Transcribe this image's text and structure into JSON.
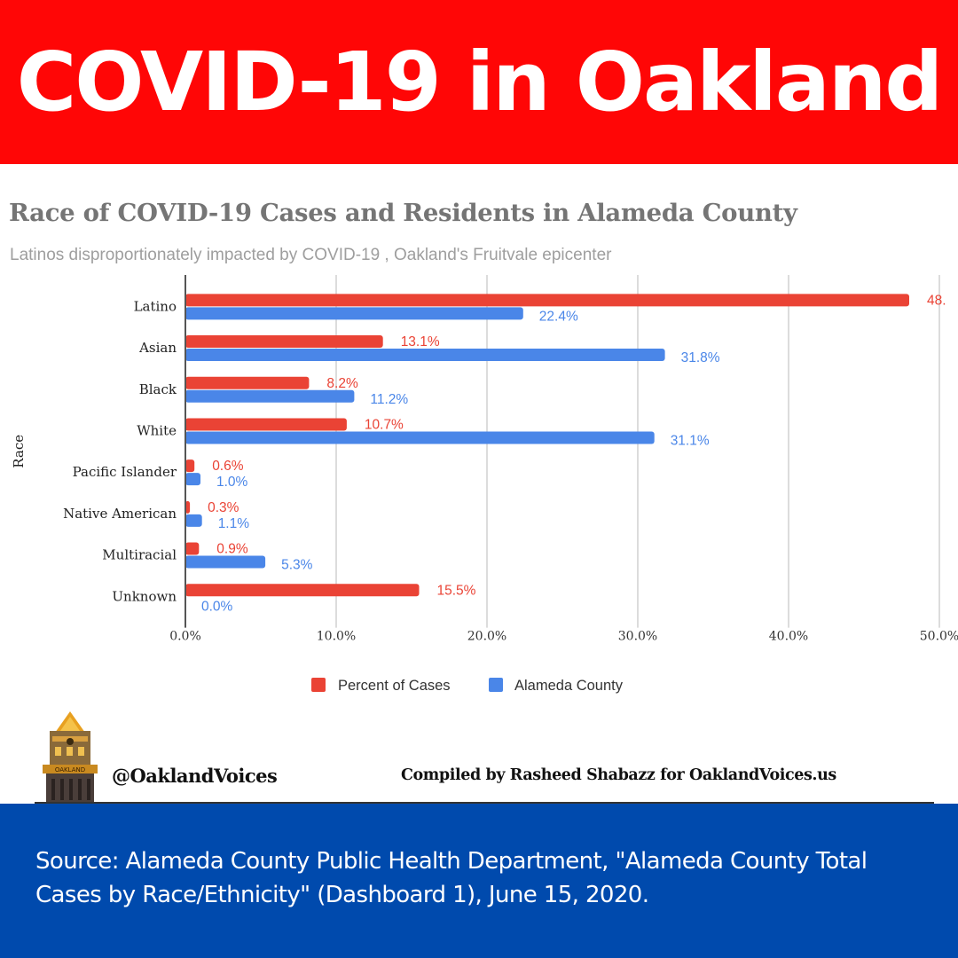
{
  "header": {
    "title": "COVID-19 in Oakland"
  },
  "colors": {
    "header_bg": "#ff0606",
    "footer_bg": "#004aad",
    "cases": "#ea4335",
    "county": "#4a86e8"
  },
  "chart_data": {
    "type": "bar",
    "orientation": "horizontal",
    "title": "Race of COVID-19 Cases and Residents in Alameda County",
    "subtitle": "Latinos disproportionately impacted by COVID-19 , Oakland's Fruitvale epicenter",
    "ylabel": "Race",
    "xlabel": "",
    "xlim": [
      0,
      50
    ],
    "grid": true,
    "x_ticks": [
      "0.0%",
      "10.0%",
      "20.0%",
      "30.0%",
      "40.0%",
      "50.0%"
    ],
    "x_tick_values": [
      0,
      10,
      20,
      30,
      40,
      50
    ],
    "categories": [
      "Latino",
      "Asian",
      "Black",
      "White",
      "Pacific Islander",
      "Native American",
      "Multiracial",
      "Unknown"
    ],
    "series": [
      {
        "name": "Percent of Cases",
        "color": "#ea4335",
        "values": [
          48.0,
          13.1,
          8.2,
          10.7,
          0.6,
          0.3,
          0.9,
          15.5
        ],
        "labels": [
          "48.",
          "13.1%",
          "8.2%",
          "10.7%",
          "0.6%",
          "0.3%",
          "0.9%",
          "15.5%"
        ]
      },
      {
        "name": "Alameda County",
        "color": "#4a86e8",
        "values": [
          22.4,
          31.8,
          11.2,
          31.1,
          1.0,
          1.1,
          5.3,
          0.0
        ],
        "labels": [
          "22.4%",
          "31.8%",
          "11.2%",
          "31.1%",
          "1.0%",
          "1.1%",
          "5.3%",
          "0.0%"
        ]
      }
    ],
    "legend": {
      "position": "bottom",
      "entries": [
        "Percent of Cases",
        "Alameda County"
      ]
    }
  },
  "branding": {
    "logo_text": "OAKLAND",
    "handle": "@OaklandVoices",
    "credit": "Compiled by Rasheed Shabazz for OaklandVoices.us"
  },
  "footer": {
    "source": "Source: Alameda County Public Health Department, \"Alameda County Total Cases by Race/Ethnicity\" (Dashboard 1), June 15, 2020."
  }
}
